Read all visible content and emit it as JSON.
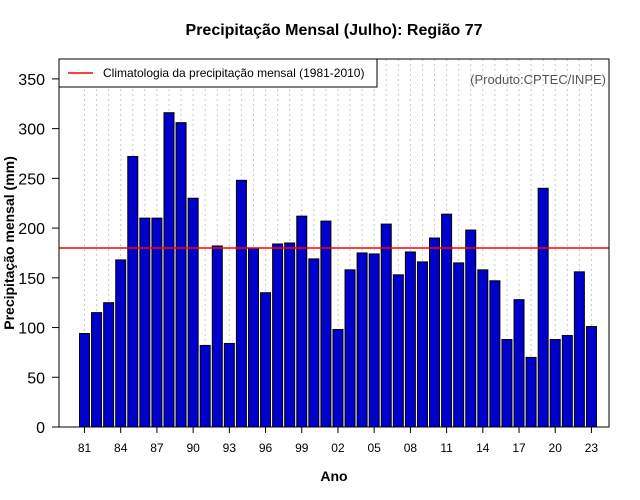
{
  "colors": {
    "bar_fill": "#0000CC",
    "bar_stroke": "#000000",
    "climatology_line": "#FF0000",
    "grid": "#C8C8C8",
    "annotation": "#555555"
  },
  "chart_data": {
    "type": "bar",
    "title": "Precipitação Mensal (Julho): Região 77",
    "xlabel": "Ano",
    "ylabel": "Precipitação mensal (mm)",
    "ylim": [
      0,
      370
    ],
    "yticks": [
      0,
      50,
      100,
      150,
      200,
      250,
      300,
      350
    ],
    "categories": [
      "81",
      "82",
      "83",
      "84",
      "85",
      "86",
      "87",
      "88",
      "89",
      "90",
      "91",
      "92",
      "93",
      "94",
      "95",
      "96",
      "97",
      "98",
      "99",
      "00",
      "01",
      "02",
      "03",
      "04",
      "05",
      "06",
      "07",
      "08",
      "09",
      "10",
      "11",
      "12",
      "13",
      "14",
      "15",
      "16",
      "17",
      "18",
      "19",
      "20",
      "21",
      "22",
      "23"
    ],
    "xtick_labels": [
      "81",
      "84",
      "87",
      "90",
      "93",
      "96",
      "99",
      "02",
      "05",
      "08",
      "11",
      "14",
      "17",
      "20",
      "23"
    ],
    "values": [
      94,
      115,
      125,
      168,
      272,
      210,
      210,
      316,
      306,
      230,
      82,
      182,
      84,
      248,
      180,
      135,
      184,
      185,
      212,
      169,
      207,
      98,
      158,
      175,
      174,
      204,
      153,
      176,
      166,
      190,
      214,
      165,
      198,
      158,
      147,
      88,
      128,
      70,
      240,
      88,
      92,
      156,
      101
    ],
    "grid": "vertical dotted, one per year",
    "legend": {
      "position": "top-left",
      "entries": [
        "Climatologia da precipitação mensal (1981-2010)"
      ]
    },
    "climatology_value": 180,
    "annotation": "(Produto:CPTEC/INPE)"
  }
}
